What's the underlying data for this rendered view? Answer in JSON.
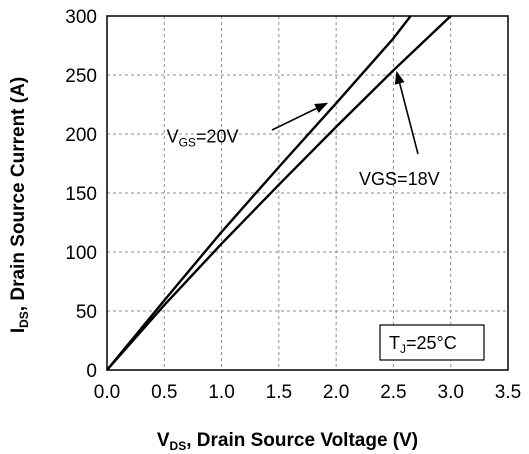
{
  "chart_data": {
    "type": "line",
    "title": "",
    "xlabel": {
      "main": "V",
      "sub": "DS",
      "rest": ", Drain Source Voltage (V)"
    },
    "ylabel": {
      "main": "I",
      "sub": "DS",
      "rest": ", Drain  Source Current (A)"
    },
    "xlim": [
      0,
      3.5
    ],
    "ylim": [
      0,
      300
    ],
    "xticks": [
      0,
      0.5,
      1.0,
      1.5,
      2.0,
      2.5,
      3.0,
      3.5
    ],
    "xtick_labels": [
      "0.0",
      "0.5",
      "1.0",
      "1.5",
      "2.0",
      "2.5",
      "3.0",
      "3.5"
    ],
    "yticks": [
      0,
      50,
      100,
      150,
      200,
      250,
      300
    ],
    "ytick_labels": [
      "0",
      "50",
      "100",
      "150",
      "200",
      "250",
      "300"
    ],
    "grid": true,
    "series": [
      {
        "x": [
          0,
          0.5,
          1.0,
          1.5,
          2.0,
          2.5,
          2.65
        ],
        "y": [
          0,
          59,
          117,
          172,
          226,
          281,
          300
        ]
      },
      {
        "x": [
          0,
          0.5,
          1.0,
          1.5,
          2.0,
          2.5,
          3.0
        ],
        "y": [
          0,
          55,
          107,
          157,
          206,
          254,
          300
        ]
      }
    ],
    "annotations": [
      {
        "main": "V",
        "sub": "GS",
        "rest": "=20V",
        "x": 0.52,
        "y": 198,
        "point_x": 2.0,
        "point_y": 229
      },
      {
        "text": "VGS=18V",
        "x": 2.2,
        "y": 162,
        "point_x": 2.5,
        "point_y": 257
      }
    ],
    "condition": {
      "main": "T",
      "sub": "J",
      "rest": "=25°C"
    }
  }
}
